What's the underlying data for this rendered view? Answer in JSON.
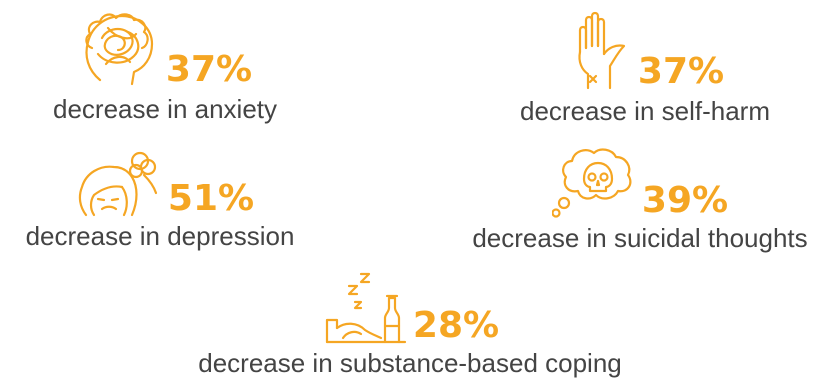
{
  "colors": {
    "accent": "#F5A623",
    "text": "#444444"
  },
  "stats": [
    {
      "icon": "tangled-brain-head-icon",
      "value": "37%",
      "label": "decrease in anxiety"
    },
    {
      "icon": "raised-hand-icon",
      "value": "37%",
      "label": "decrease in self-harm"
    },
    {
      "icon": "sad-face-head-icon",
      "value": "51%",
      "label": "decrease in depression"
    },
    {
      "icon": "skull-thought-bubble-icon",
      "value": "39%",
      "label": "decrease in suicidal thoughts"
    },
    {
      "icon": "sleeping-bottle-icon",
      "value": "28%",
      "label": "decrease in substance-based coping"
    }
  ]
}
